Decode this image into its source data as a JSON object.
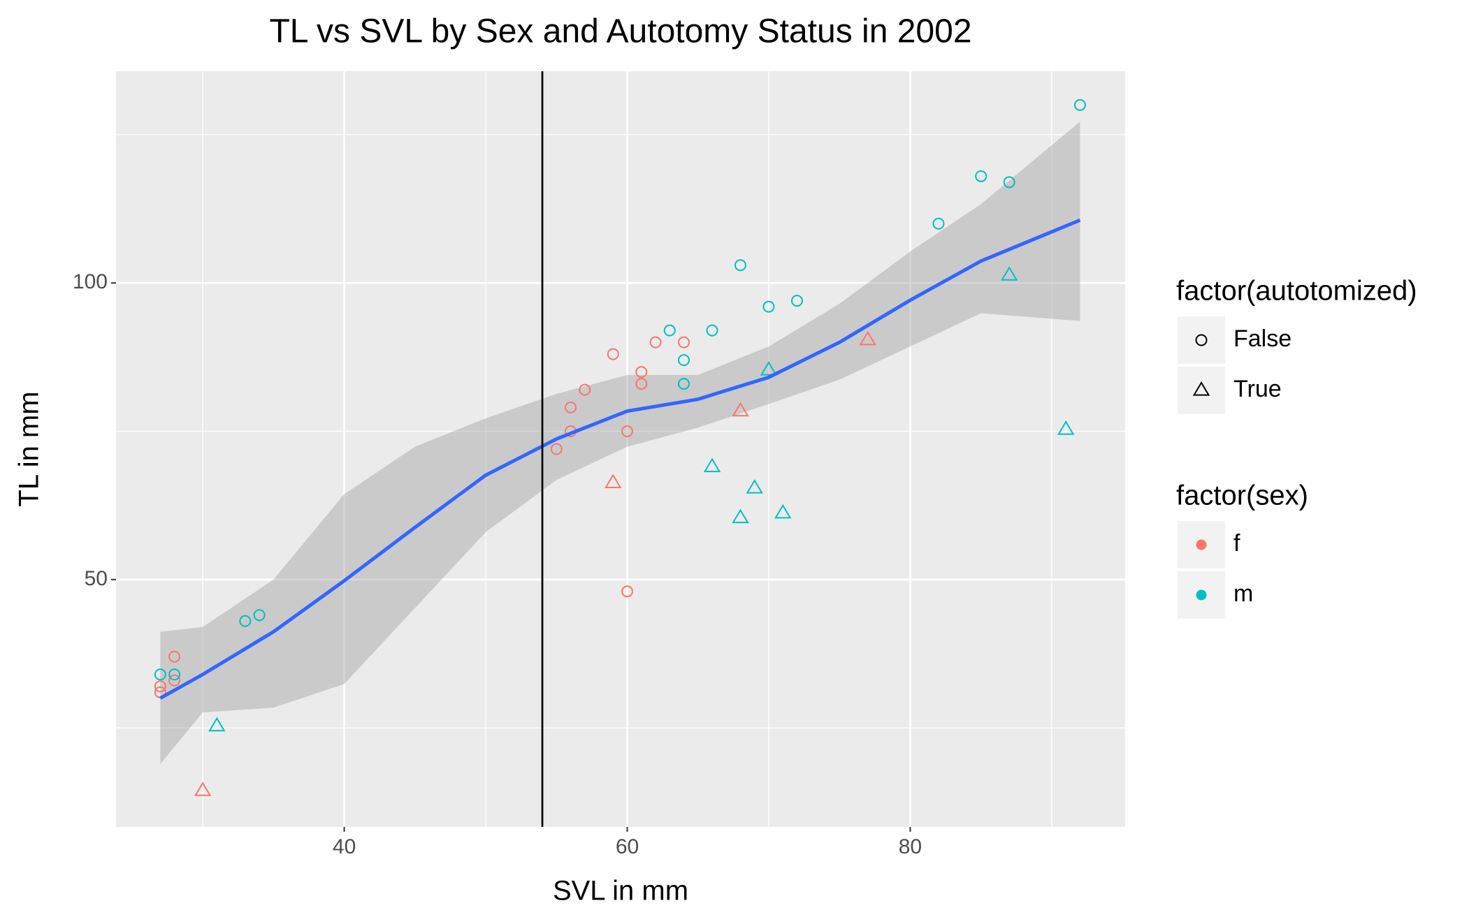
{
  "chart_data": {
    "type": "scatter",
    "title": "TL vs SVL by Sex and Autotomy Status in 2002",
    "x_label": "SVL in mm",
    "y_label": "TL in mm",
    "xlim": [
      23.87,
      95.19
    ],
    "ylim": [
      8.3,
      135.7
    ],
    "xticks": [
      40,
      60,
      80
    ],
    "yticks": [
      50,
      100
    ],
    "x_minor_ticks": [
      30,
      50,
      70,
      90
    ],
    "y_minor_ticks": [
      25,
      75,
      125
    ],
    "grid": true,
    "vline": 54,
    "legends": [
      {
        "title": "factor(autotomized)",
        "entries": [
          {
            "label": "False",
            "shape": "circle"
          },
          {
            "label": "True",
            "shape": "triangle"
          }
        ]
      },
      {
        "title": "factor(sex)",
        "entries": [
          {
            "label": "f",
            "color": "#F8766D"
          },
          {
            "label": "m",
            "color": "#00BFC4"
          }
        ]
      }
    ],
    "series": [
      {
        "color": "#F8766D",
        "shape": "circle",
        "x": [
          27,
          27,
          28,
          28,
          55,
          56,
          56,
          57,
          59,
          60,
          60,
          61,
          61,
          62,
          64
        ],
        "y": [
          32,
          31,
          37,
          33,
          72,
          75,
          79,
          82,
          88,
          75,
          48,
          83,
          85,
          90,
          90
        ]
      },
      {
        "color": "#F8766D",
        "shape": "triangle",
        "x": [
          30,
          59,
          68,
          77
        ],
        "y": [
          14.4,
          66.3,
          78.4,
          90.4
        ]
      },
      {
        "color": "#00BFC4",
        "shape": "circle",
        "x": [
          27,
          28,
          33,
          34,
          63,
          64,
          64,
          66,
          68,
          70,
          72,
          82,
          85,
          87,
          92
        ],
        "y": [
          34,
          34,
          43,
          44,
          92,
          87,
          83,
          92,
          103,
          96,
          97,
          110,
          118,
          117,
          130
        ]
      },
      {
        "color": "#00BFC4",
        "shape": "triangle",
        "x": [
          31,
          66,
          68,
          69,
          70,
          71,
          87,
          91
        ],
        "y": [
          25.3,
          69,
          60.4,
          65.4,
          85.3,
          61.2,
          101.3,
          75.3
        ]
      }
    ],
    "smooth": {
      "color": "#3366FF",
      "x": [
        27,
        30,
        35,
        40,
        45,
        50,
        55,
        60,
        65,
        70,
        75,
        80,
        85,
        92
      ],
      "y": [
        30,
        34,
        41.2,
        49.8,
        58.8,
        67.6,
        73.7,
        78.4,
        80.4,
        84.1,
        90,
        97.1,
        103.7,
        110.6
      ],
      "upper": [
        41.2,
        42,
        50,
        64.4,
        72.4,
        77.2,
        81.3,
        84.5,
        84.5,
        89.3,
        96.5,
        105.3,
        113.3,
        127.2
      ],
      "lower": [
        18.9,
        27.6,
        28.4,
        32.4,
        45.2,
        58,
        66.8,
        72.4,
        75.6,
        79.6,
        83.7,
        89.3,
        94.9,
        93.6
      ]
    }
  }
}
